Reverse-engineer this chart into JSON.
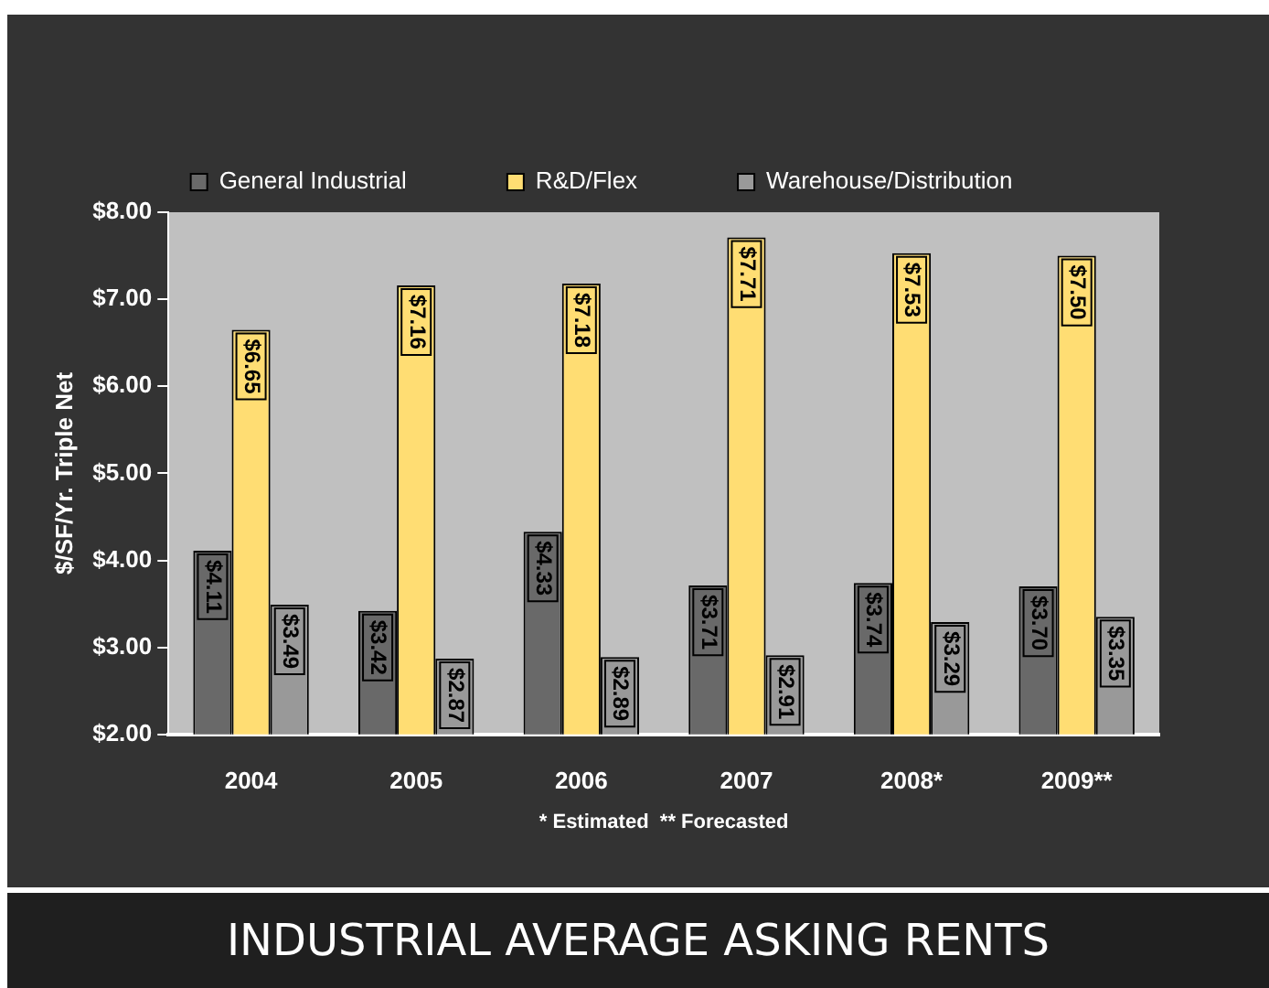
{
  "chart_data": {
    "type": "bar",
    "title": "INDUSTRIAL AVERAGE ASKING RENTS",
    "ylabel": "$/SF/Yr. Triple Net",
    "annotations": [
      "* Estimated  ** Forecasted"
    ],
    "categories": [
      "2004",
      "2005",
      "2006",
      "2007",
      "2008*",
      "2009**"
    ],
    "series": [
      {
        "name": "General Industrial",
        "color": "#696969",
        "values": [
          4.11,
          3.42,
          4.33,
          3.71,
          3.74,
          3.7
        ],
        "value_labels": [
          "$4.11",
          "$3.42",
          "$4.33",
          "$3.71",
          "$3.74",
          "$3.70"
        ]
      },
      {
        "name": "R&D/Flex",
        "color": "#ffdd73",
        "values": [
          6.65,
          7.16,
          7.18,
          7.71,
          7.53,
          7.5
        ],
        "value_labels": [
          "$6.65",
          "$7.16",
          "$7.18",
          "$7.71",
          "$7.53",
          "$7.50"
        ]
      },
      {
        "name": "Warehouse/Distribution",
        "color": "#999999",
        "values": [
          3.49,
          2.87,
          2.89,
          2.91,
          3.29,
          3.35
        ],
        "value_labels": [
          "$3.49",
          "$2.87",
          "$2.89",
          "$2.91",
          "$3.29",
          "$3.35"
        ]
      }
    ],
    "ylim": [
      2,
      8
    ],
    "yticks": [
      {
        "value": 2,
        "label": "$2.00"
      },
      {
        "value": 3,
        "label": "$3.00"
      },
      {
        "value": 4,
        "label": "$4.00"
      },
      {
        "value": 5,
        "label": "$5.00"
      },
      {
        "value": 6,
        "label": "$6.00"
      },
      {
        "value": 7,
        "label": "$7.00"
      },
      {
        "value": 8,
        "label": "$8.00"
      }
    ],
    "grid": false,
    "legend": "top"
  }
}
